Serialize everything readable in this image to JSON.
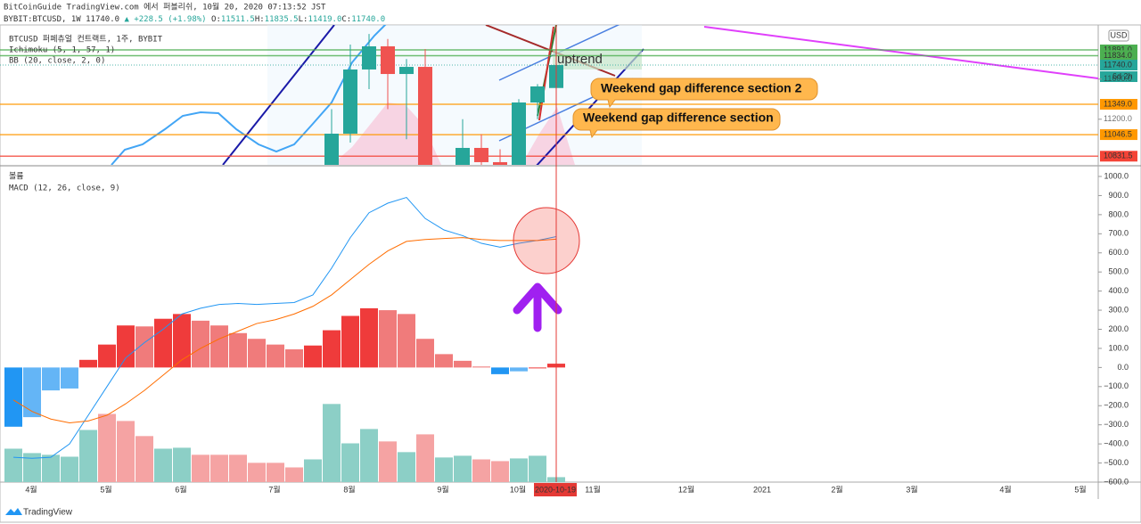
{
  "header": {
    "line1": "BitCoinGuide TradingView.com 에서 퍼블리쉬, 10월 20, 2020 07:13:52 JST",
    "symbol": "BYBIT:BTCUSD, 1W",
    "last": "11740.0",
    "change": "▲ +228.5 (+1.98%)",
    "ohlc": [
      {
        "k": "O:",
        "v": "11511.5"
      },
      {
        "k": "H:",
        "v": "11835.5"
      },
      {
        "k": "L:",
        "v": "11419.0"
      },
      {
        "k": "C:",
        "v": "11740.0"
      }
    ]
  },
  "price_pane": {
    "labels": [
      "BTCUSD 퍼페츄얼 컨트랙트, 1주, BYBIT",
      "Ichimoku (5, 1, 57, 1)",
      "BB (20, close, 2, 0)"
    ],
    "currency": "USD",
    "ylim": [
      10745,
      12140
    ],
    "levels": [
      {
        "value": 11891,
        "label": "11891.0",
        "color": "#4caf50"
      },
      {
        "value": 11834,
        "label": "11834.0",
        "color": "#4caf50"
      },
      {
        "value": 11740,
        "label": "11740.0",
        "color": "#26a69a"
      },
      {
        "value": 11600,
        "label": "11600.0"
      },
      {
        "value": 11349,
        "label": "11349.0",
        "color": "#ff9800"
      },
      {
        "value": 11200,
        "label": "11200.0"
      },
      {
        "value": 11046.5,
        "label": "11046.5",
        "color": "#ff9800"
      },
      {
        "value": 10831.5,
        "label": "10831.5",
        "color": "#f44336"
      }
    ],
    "countdown": "6d 2h",
    "candle_colors": {
      "up": "#26a69a",
      "down": "#ef5350"
    },
    "candles": [
      {
        "open": 10600,
        "high": 11300,
        "low": 10500,
        "close": 11056
      },
      {
        "open": 11056,
        "high": 11944,
        "low": 10967,
        "close": 11696
      },
      {
        "open": 11696,
        "high": 12050,
        "low": 11500,
        "close": 11927
      },
      {
        "open": 11927,
        "high": 12000,
        "low": 11300,
        "close": 11651
      },
      {
        "open": 11651,
        "high": 11800,
        "low": 11000,
        "close": 11722
      },
      {
        "open": 11722,
        "high": 11900,
        "low": 10400,
        "close": 10600
      },
      {
        "open": 10500,
        "high": 10700,
        "low": 10200,
        "close": 10400
      },
      {
        "open": 10700,
        "high": 11200,
        "low": 10600,
        "close": 10914
      },
      {
        "open": 10914,
        "high": 11050,
        "low": 10600,
        "close": 10772
      },
      {
        "open": 10772,
        "high": 10900,
        "low": 10600,
        "close": 10745
      },
      {
        "open": 10745,
        "high": 11400,
        "low": 10600,
        "close": 11367
      },
      {
        "open": 11367,
        "high": 11550,
        "low": 11200,
        "close": 11527
      },
      {
        "open": 11511.5,
        "high": 11835.5,
        "low": 11419,
        "close": 11740
      }
    ],
    "annotations": [
      "uptrend",
      "Weekend gap difference section 2",
      "Weekend gap difference section"
    ]
  },
  "macd_pane": {
    "labels": [
      "볼륨",
      "MACD (12, 26, close, 9)"
    ],
    "ylim": [
      -600,
      1000
    ],
    "yticks": [
      {
        "value": 1000,
        "label": "1000.0"
      },
      {
        "value": 900,
        "label": "900.0"
      },
      {
        "value": 800,
        "label": "800.0"
      },
      {
        "value": 700,
        "label": "700.0"
      },
      {
        "value": 600,
        "label": "600.0"
      },
      {
        "value": 500,
        "label": "500.0"
      },
      {
        "value": 400,
        "label": "400.0"
      },
      {
        "value": 300,
        "label": "300.0"
      },
      {
        "value": 200,
        "label": "200.0"
      },
      {
        "value": 100,
        "label": "100.0"
      },
      {
        "value": 0,
        "label": "0.0"
      },
      {
        "value": -100,
        "label": "−100.0"
      },
      {
        "value": -200,
        "label": "−200.0"
      },
      {
        "value": -300,
        "label": "−300.0"
      },
      {
        "value": -400,
        "label": "−400.0"
      },
      {
        "value": -500,
        "label": "−500.0"
      },
      {
        "value": -600,
        "label": "−600.0"
      }
    ],
    "histogram": [
      -310,
      -260,
      -120,
      -110,
      40,
      120,
      220,
      215,
      255,
      280,
      245,
      220,
      180,
      150,
      120,
      95,
      115,
      195,
      270,
      310,
      300,
      280,
      150,
      70,
      35,
      5,
      -35,
      -20,
      0,
      20
    ],
    "hist_colors": {
      "pos_up": "#ef3b3b",
      "pos_down": "#f07b7b",
      "neg_down": "#2196f3",
      "neg_up": "#64b5f6"
    },
    "volume": [
      -425,
      -448,
      -457,
      -467,
      -327,
      -243,
      -280,
      -359,
      -425,
      -420,
      -457,
      -457,
      -457,
      -499,
      -499,
      -523,
      -481,
      -191,
      -397,
      -322,
      -387,
      -443,
      -350,
      -471,
      -462,
      -481,
      -490,
      -476,
      -462,
      -574
    ],
    "volume_colors": [
      "#8ccfc6",
      "#8ccfc6",
      "#8ccfc6",
      "#8ccfc6",
      "#8ccfc6",
      "#f5a3a3",
      "#f5a3a3",
      "#f5a3a3",
      "#8ccfc6",
      "#8ccfc6",
      "#f5a3a3",
      "#f5a3a3",
      "#f5a3a3",
      "#f5a3a3",
      "#f5a3a3",
      "#f5a3a3",
      "#8ccfc6",
      "#8ccfc6",
      "#8ccfc6",
      "#8ccfc6",
      "#f5a3a3",
      "#8ccfc6",
      "#f5a3a3",
      "#8ccfc6",
      "#8ccfc6",
      "#f5a3a3",
      "#f5a3a3",
      "#8ccfc6",
      "#8ccfc6",
      "#8ccfc6"
    ],
    "macd_line": {
      "color": "#2196f3",
      "values": [
        -470,
        -475,
        -470,
        -400,
        -250,
        -100,
        50,
        130,
        200,
        280,
        310,
        330,
        335,
        330,
        335,
        340,
        380,
        520,
        680,
        810,
        860,
        890,
        780,
        720,
        690,
        650,
        630,
        650,
        665,
        685
      ]
    },
    "signal_line": {
      "color": "#ff6d00",
      "values": [
        -170,
        -230,
        -270,
        -290,
        -280,
        -250,
        -190,
        -120,
        -40,
        40,
        100,
        150,
        190,
        230,
        250,
        280,
        320,
        380,
        460,
        540,
        610,
        660,
        670,
        675,
        680,
        670,
        665,
        665,
        665,
        672
      ]
    }
  },
  "x_axis": {
    "labels": [
      "4월",
      "5월",
      "6월",
      "7월",
      "8월",
      "9월",
      "10월",
      "11월",
      "12월",
      "2021",
      "2월",
      "3월",
      "4월",
      "5월"
    ],
    "cursor": "2020-10-19"
  },
  "footer": "TradingView"
}
